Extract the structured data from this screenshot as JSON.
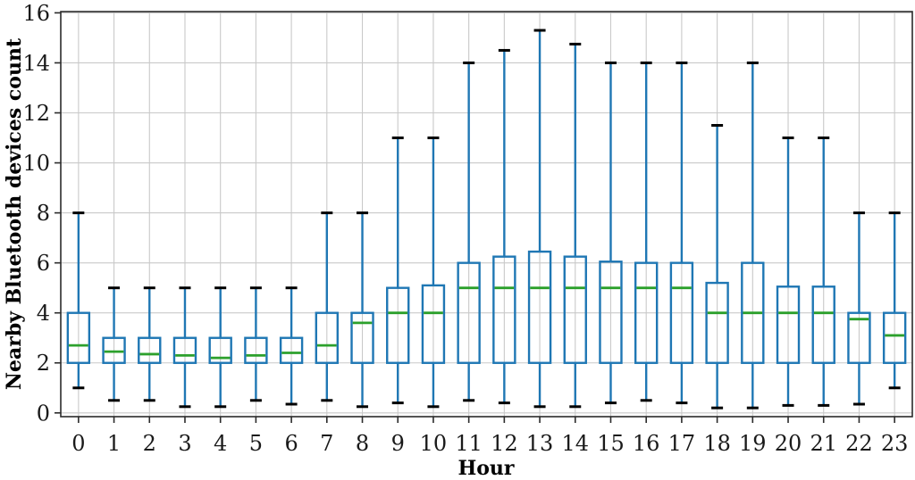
{
  "chart_data": {
    "type": "boxplot",
    "title": "",
    "xlabel": "Hour",
    "ylabel": "Nearby Bluetooth devices count",
    "categories": [
      "0",
      "1",
      "2",
      "3",
      "4",
      "5",
      "6",
      "7",
      "8",
      "9",
      "10",
      "11",
      "12",
      "13",
      "14",
      "15",
      "16",
      "17",
      "18",
      "19",
      "20",
      "21",
      "22",
      "23"
    ],
    "y_ticks": [
      0,
      2,
      4,
      6,
      8,
      10,
      12,
      14,
      16
    ],
    "ylim": [
      -0.15,
      16.05
    ],
    "xlim": [
      -0.5,
      23.5
    ],
    "grid": true,
    "legend": "none",
    "colors": {
      "box": "#1f77b4",
      "whisker": "#1f77b4",
      "cap": "#000000",
      "median": "#2ca02c",
      "grid": "#c9c9c9",
      "spine": "#2b2b2b",
      "background": "#ffffff"
    },
    "series": [
      {
        "hour": "0",
        "whislo": 1.0,
        "q1": 2,
        "median": 2.7,
        "q3": 4,
        "whishi": 8
      },
      {
        "hour": "1",
        "whislo": 0.5,
        "q1": 2,
        "median": 2.45,
        "q3": 3,
        "whishi": 5
      },
      {
        "hour": "2",
        "whislo": 0.5,
        "q1": 2,
        "median": 2.35,
        "q3": 3,
        "whishi": 5
      },
      {
        "hour": "3",
        "whislo": 0.25,
        "q1": 2,
        "median": 2.3,
        "q3": 3,
        "whishi": 5
      },
      {
        "hour": "4",
        "whislo": 0.25,
        "q1": 2,
        "median": 2.2,
        "q3": 3,
        "whishi": 5
      },
      {
        "hour": "5",
        "whislo": 0.5,
        "q1": 2,
        "median": 2.3,
        "q3": 3,
        "whishi": 5
      },
      {
        "hour": "6",
        "whislo": 0.35,
        "q1": 2,
        "median": 2.4,
        "q3": 3,
        "whishi": 5
      },
      {
        "hour": "7",
        "whislo": 0.5,
        "q1": 2,
        "median": 2.7,
        "q3": 4,
        "whishi": 8
      },
      {
        "hour": "8",
        "whislo": 0.25,
        "q1": 2,
        "median": 3.6,
        "q3": 4,
        "whishi": 8
      },
      {
        "hour": "9",
        "whislo": 0.4,
        "q1": 2,
        "median": 4.0,
        "q3": 5,
        "whishi": 11
      },
      {
        "hour": "10",
        "whislo": 0.25,
        "q1": 2,
        "median": 4.0,
        "q3": 5.1,
        "whishi": 11
      },
      {
        "hour": "11",
        "whislo": 0.5,
        "q1": 2,
        "median": 5.0,
        "q3": 6,
        "whishi": 14
      },
      {
        "hour": "12",
        "whislo": 0.4,
        "q1": 2,
        "median": 5.0,
        "q3": 6.25,
        "whishi": 14.5
      },
      {
        "hour": "13",
        "whislo": 0.25,
        "q1": 2,
        "median": 5.0,
        "q3": 6.45,
        "whishi": 15.3
      },
      {
        "hour": "14",
        "whislo": 0.25,
        "q1": 2,
        "median": 5.0,
        "q3": 6.25,
        "whishi": 14.75
      },
      {
        "hour": "15",
        "whislo": 0.4,
        "q1": 2,
        "median": 5.0,
        "q3": 6.05,
        "whishi": 14
      },
      {
        "hour": "16",
        "whislo": 0.5,
        "q1": 2,
        "median": 5.0,
        "q3": 6,
        "whishi": 14
      },
      {
        "hour": "17",
        "whislo": 0.4,
        "q1": 2,
        "median": 5.0,
        "q3": 6,
        "whishi": 14
      },
      {
        "hour": "18",
        "whislo": 0.2,
        "q1": 2,
        "median": 4.0,
        "q3": 5.2,
        "whishi": 11.5
      },
      {
        "hour": "19",
        "whislo": 0.2,
        "q1": 2,
        "median": 4.0,
        "q3": 6,
        "whishi": 14
      },
      {
        "hour": "20",
        "whislo": 0.3,
        "q1": 2,
        "median": 4.0,
        "q3": 5.05,
        "whishi": 11
      },
      {
        "hour": "21",
        "whislo": 0.3,
        "q1": 2,
        "median": 4.0,
        "q3": 5.05,
        "whishi": 11
      },
      {
        "hour": "22",
        "whislo": 0.35,
        "q1": 2,
        "median": 3.75,
        "q3": 4,
        "whishi": 8
      },
      {
        "hour": "23",
        "whislo": 1.0,
        "q1": 2,
        "median": 3.1,
        "q3": 4,
        "whishi": 8
      }
    ]
  }
}
